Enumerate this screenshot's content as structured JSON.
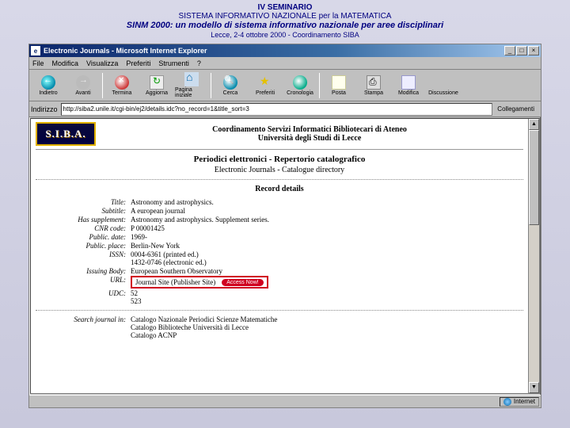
{
  "slide": {
    "line1": "IV SEMINARIO",
    "line2": "SISTEMA INFORMATIVO NAZIONALE per la MATEMATICA",
    "line3_prefix": "SINM 2000:",
    "line3_rest": " un modello di sistema informativo nazionale per aree disciplinari",
    "line4": "Lecce, 2-4 ottobre 2000 - Coordinamento SIBA"
  },
  "browser": {
    "title": "Electronic Journals - Microsoft Internet Explorer",
    "winbtns": {
      "min": "_",
      "max": "□",
      "close": "×"
    },
    "menu": [
      "File",
      "Modifica",
      "Visualizza",
      "Preferiti",
      "Strumenti",
      "?"
    ],
    "toolbar": [
      {
        "key": "back",
        "label": "Indietro"
      },
      {
        "key": "fwd",
        "label": "Avanti"
      },
      {
        "key": "sep"
      },
      {
        "key": "stop",
        "label": "Termina"
      },
      {
        "key": "refresh",
        "label": "Aggiorna"
      },
      {
        "key": "home",
        "label": "Pagina iniziale"
      },
      {
        "key": "sep"
      },
      {
        "key": "search",
        "label": "Cerca"
      },
      {
        "key": "fav",
        "label": "Preferiti"
      },
      {
        "key": "hist",
        "label": "Cronologia"
      },
      {
        "key": "sep"
      },
      {
        "key": "mail",
        "label": "Posta"
      },
      {
        "key": "print",
        "label": "Stampa"
      },
      {
        "key": "edit",
        "label": "Modifica"
      },
      {
        "key": "discuss",
        "label": "Discussione"
      }
    ],
    "address_label": "Indirizzo",
    "url": "http://siba2.unile.it/cgi-bin/ej2/details.idc?no_record=1&title_sort=3",
    "links_label": "Collegamenti",
    "status_zone": "Internet"
  },
  "page": {
    "siba_logo": "S.I.B.A.",
    "siba_t1": "Coordinamento Servizi Informatici Bibliotecari di Ateneo",
    "siba_t2": "Università degli Studi di Lecce",
    "section_title_b": "Periodici elettronici - Repertorio catalografico",
    "section_sub": "Electronic Journals - Catalogue directory",
    "record_title": "Record details",
    "fields": {
      "title": {
        "label": "Title:",
        "value": "Astronomy and astrophysics."
      },
      "subtitle": {
        "label": "Subtitle:",
        "value": "A european journal"
      },
      "supplement": {
        "label": "Has supplement:",
        "value": "Astronomy and astrophysics. Supplement series."
      },
      "cnr": {
        "label": "CNR code:",
        "value": "P 00001425"
      },
      "pubdate": {
        "label": "Public. date:",
        "value": "1969-"
      },
      "pubplace": {
        "label": "Public. place:",
        "value": "Berlin-New York"
      },
      "issn": {
        "label": "ISSN:",
        "value1": "0004-6361 (printed ed.)",
        "value2": "1432-0746 (electronic ed.)"
      },
      "issuing": {
        "label": "Issuing Body:",
        "value": "European Southern Observatory"
      },
      "url": {
        "label": "URL:",
        "value": "Journal Site (Publisher Site)",
        "button": "Access Now!"
      },
      "udc": {
        "label": "UDC:",
        "value1": "52",
        "value2": "523"
      },
      "search": {
        "label": "Search journal in:",
        "v1": "Catalogo Nazionale Periodici Scienze Matematiche",
        "v2": "Catalogo Biblioteche Università di Lecce",
        "v3": "Catalogo ACNP"
      }
    }
  },
  "colors": {
    "header_text": "#000080",
    "highlight_border": "#d00020",
    "titlebar_start": "#0a246a",
    "titlebar_end": "#a6caf0",
    "chrome_bg": "#c0c0c0"
  }
}
